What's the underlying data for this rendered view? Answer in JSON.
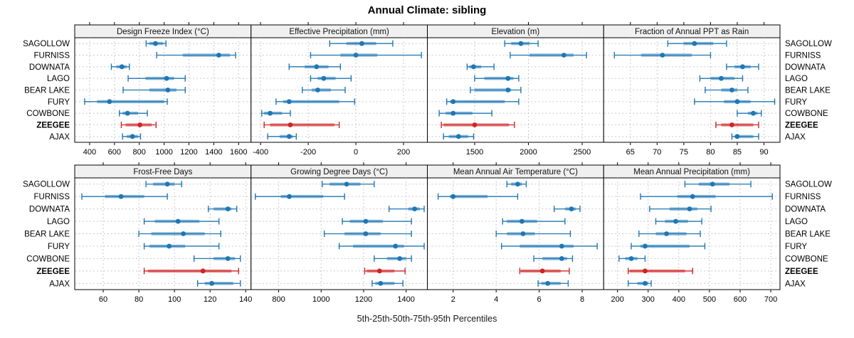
{
  "title": "Annual Climate: sibling",
  "caption": "5th-25th-50th-75th-95th Percentiles",
  "sites": [
    "SAGOLLOW",
    "FURNISS",
    "DOWNATA",
    "LAGO",
    "BEAR LAKE",
    "FURY",
    "COWBONE",
    "ZEEGEE",
    "AJAX"
  ],
  "highlight_site": "ZEEGEE",
  "percentiles": [
    5,
    25,
    50,
    75,
    95
  ],
  "colors": {
    "normal": "#1f77b4",
    "highlight": "#cf2426",
    "grid": "#c9c9c9",
    "strip_bg": "#f0f0f0",
    "border": "#000000",
    "panel_bg": "#ffffff"
  },
  "chart_data": [
    {
      "type": "dotplot",
      "title": "Design Freeze Index (°C)",
      "xlim": [
        280,
        1700
      ],
      "xticks": [
        400,
        600,
        800,
        1000,
        1200,
        1400,
        1600
      ],
      "values": {
        "SAGOLLOW": [
          855,
          880,
          930,
          990,
          1015
        ],
        "FURNISS": [
          940,
          1150,
          1440,
          1530,
          1575
        ],
        "DOWNATA": [
          575,
          615,
          660,
          700,
          720
        ],
        "LAGO": [
          710,
          850,
          1020,
          1080,
          1170
        ],
        "BEAR LAKE": [
          670,
          880,
          1030,
          1100,
          1170
        ],
        "FURY": [
          360,
          460,
          560,
          1000,
          1025
        ],
        "COWBONE": [
          640,
          665,
          705,
          790,
          865
        ],
        "ZEEGEE": [
          655,
          690,
          805,
          900,
          935
        ],
        "AJAX": [
          665,
          700,
          745,
          790,
          810
        ]
      }
    },
    {
      "type": "dotplot",
      "title": "Effective Precipitation (mm)",
      "xlim": [
        -440,
        300
      ],
      "xticks": [
        -400,
        -200,
        0,
        200
      ],
      "values": {
        "SAGOLLOW": [
          -110,
          -40,
          25,
          85,
          155
        ],
        "FURNISS": [
          -190,
          -65,
          0,
          90,
          275
        ],
        "DOWNATA": [
          -280,
          -215,
          -165,
          -115,
          -65
        ],
        "LAGO": [
          -190,
          -160,
          -135,
          -85,
          -20
        ],
        "BEAR LAKE": [
          -225,
          -185,
          -160,
          -105,
          -45
        ],
        "FURY": [
          -335,
          -305,
          -280,
          -70,
          -5
        ],
        "COWBONE": [
          -395,
          -385,
          -360,
          -310,
          -275
        ],
        "ZEEGEE": [
          -385,
          -360,
          -275,
          -90,
          -70
        ],
        "AJAX": [
          -370,
          -320,
          -280,
          -265,
          -250
        ]
      }
    },
    {
      "type": "dotplot",
      "title": "Elevation (m)",
      "xlim": [
        1060,
        2700
      ],
      "xticks": [
        1500,
        2000,
        2500
      ],
      "values": {
        "SAGOLLOW": [
          1780,
          1840,
          1930,
          2010,
          2090
        ],
        "FURNISS": [
          1830,
          2010,
          2330,
          2420,
          2540
        ],
        "DOWNATA": [
          1430,
          1450,
          1490,
          1560,
          1680
        ],
        "LAGO": [
          1500,
          1590,
          1810,
          1860,
          1910
        ],
        "BEAR LAKE": [
          1460,
          1500,
          1810,
          1840,
          1930
        ],
        "FURY": [
          1240,
          1270,
          1300,
          1780,
          1910
        ],
        "COWBONE": [
          1170,
          1230,
          1300,
          1480,
          1660
        ],
        "ZEEGEE": [
          1190,
          1210,
          1500,
          1820,
          1870
        ],
        "AJAX": [
          1210,
          1260,
          1350,
          1440,
          1490
        ]
      }
    },
    {
      "type": "dotplot",
      "title": "Fraction of Annual PPT as Rain",
      "xlim": [
        60,
        93
      ],
      "xticks": [
        65,
        70,
        75,
        80,
        85,
        90
      ],
      "values": {
        "SAGOLLOW": [
          72,
          75,
          77,
          80.5,
          83
        ],
        "FURNISS": [
          62,
          67,
          71,
          76.5,
          80
        ],
        "DOWNATA": [
          83,
          84.5,
          86,
          87.5,
          89
        ],
        "LAGO": [
          78,
          80,
          82,
          84.5,
          86
        ],
        "BEAR LAKE": [
          79,
          82,
          84,
          85,
          87
        ],
        "FURY": [
          77,
          82.5,
          85,
          87.5,
          92
        ],
        "COWBONE": [
          85,
          87,
          88,
          88.8,
          89.5
        ],
        "ZEEGEE": [
          81,
          82,
          84,
          88,
          89
        ],
        "AJAX": [
          84,
          84.5,
          85,
          88,
          89
        ]
      }
    },
    {
      "type": "dotplot",
      "title": "Frost-Free Days",
      "xlim": [
        44,
        143
      ],
      "xticks": [
        60,
        80,
        100,
        120,
        140
      ],
      "values": {
        "SAGOLLOW": [
          84,
          88,
          96,
          100,
          104
        ],
        "FURNISS": [
          48,
          61,
          70,
          83,
          96
        ],
        "DOWNATA": [
          119,
          122,
          130,
          132,
          135
        ],
        "LAGO": [
          83,
          89,
          102,
          114,
          125
        ],
        "BEAR LAKE": [
          80,
          87,
          105,
          117,
          126
        ],
        "FURY": [
          83,
          86,
          97,
          106,
          125
        ],
        "COWBONE": [
          111,
          122,
          130,
          134,
          137
        ],
        "ZEEGEE": [
          83,
          85,
          116,
          132,
          136
        ],
        "AJAX": [
          113,
          117,
          121,
          133,
          137
        ]
      }
    },
    {
      "type": "dotplot",
      "title": "Growing Degree Days (°C)",
      "xlim": [
        670,
        1500
      ],
      "xticks": [
        800,
        1000,
        1200,
        1400
      ],
      "values": {
        "SAGOLLOW": [
          1005,
          1040,
          1120,
          1185,
          1250
        ],
        "FURNISS": [
          690,
          810,
          850,
          1010,
          1110
        ],
        "DOWNATA": [
          1320,
          1410,
          1440,
          1465,
          1485
        ],
        "LAGO": [
          1100,
          1135,
          1210,
          1290,
          1425
        ],
        "BEAR LAKE": [
          1015,
          1110,
          1210,
          1280,
          1425
        ],
        "FURY": [
          1085,
          1150,
          1350,
          1390,
          1485
        ],
        "COWBONE": [
          1250,
          1310,
          1370,
          1400,
          1425
        ],
        "ZEEGEE": [
          1205,
          1215,
          1275,
          1345,
          1395
        ],
        "AJAX": [
          1240,
          1255,
          1280,
          1345,
          1385
        ]
      }
    },
    {
      "type": "dotplot",
      "title": "Mean Annual Air Temperature (°C)",
      "xlim": [
        0.8,
        9.0
      ],
      "xticks": [
        2,
        4,
        6,
        8
      ],
      "values": {
        "SAGOLLOW": [
          4.5,
          4.7,
          5.0,
          5.2,
          5.4
        ],
        "FURNISS": [
          1.3,
          1.85,
          2.0,
          3.6,
          5.0
        ],
        "DOWNATA": [
          6.7,
          7.2,
          7.5,
          7.7,
          7.9
        ],
        "LAGO": [
          4.3,
          4.5,
          5.2,
          5.9,
          7.2
        ],
        "BEAR LAKE": [
          4.0,
          4.5,
          5.25,
          5.8,
          7.45
        ],
        "FURY": [
          4.25,
          5.1,
          7.05,
          7.6,
          8.7
        ],
        "COWBONE": [
          5.75,
          6.15,
          7.05,
          7.3,
          7.55
        ],
        "ZEEGEE": [
          5.1,
          5.15,
          6.15,
          7.0,
          7.4
        ],
        "AJAX": [
          5.95,
          6.1,
          6.4,
          7.0,
          7.35
        ]
      }
    },
    {
      "type": "dotplot",
      "title": "Mean Annual Precipitation (mm)",
      "xlim": [
        155,
        730
      ],
      "xticks": [
        200,
        300,
        400,
        500,
        600,
        700
      ],
      "values": {
        "SAGOLLOW": [
          420,
          465,
          510,
          565,
          635
        ],
        "FURNISS": [
          275,
          395,
          445,
          520,
          705
        ],
        "DOWNATA": [
          305,
          370,
          435,
          460,
          505
        ],
        "LAGO": [
          325,
          355,
          390,
          430,
          475
        ],
        "BEAR LAKE": [
          270,
          325,
          360,
          425,
          470
        ],
        "FURY": [
          245,
          275,
          290,
          435,
          485
        ],
        "COWBONE": [
          205,
          225,
          245,
          265,
          290
        ],
        "ZEEGEE": [
          235,
          240,
          290,
          420,
          445
        ],
        "AJAX": [
          235,
          265,
          290,
          300,
          310
        ]
      }
    }
  ]
}
